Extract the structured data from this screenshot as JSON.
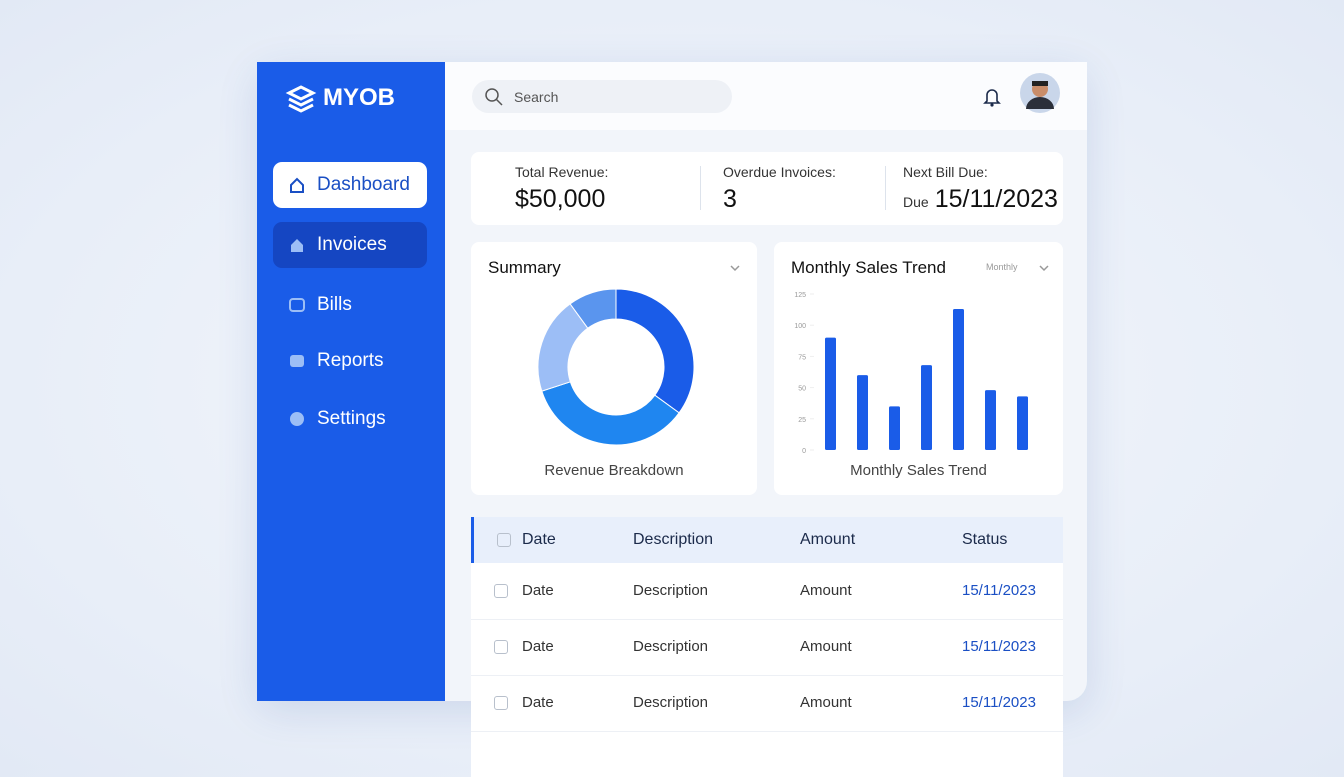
{
  "sidebar": {
    "logo": "MYOB",
    "nav": [
      "Dashboard",
      "Invoices",
      "Bills",
      "Reports",
      "Settings"
    ]
  },
  "header": {
    "search_placeholder": "Search"
  },
  "stats": [
    {
      "label": "Total Revenue:",
      "value": "$50,000"
    },
    {
      "label": "Overdue Invoices:",
      "value": "3"
    },
    {
      "label": "Next Bill Due:",
      "prefix": "Due",
      "value": "15/11/2023"
    }
  ],
  "summary": {
    "title": "Summary",
    "chart": {
      "type": "pie",
      "caption": "Revenue Breakdown",
      "values": [
        35,
        35,
        20,
        10
      ],
      "colors": [
        "#1a5ce8",
        "#1f86f0",
        "#9cbef6",
        "#5a95ee"
      ]
    }
  },
  "sales_trend": {
    "title": "Monthly Sales Trend",
    "filter": "Monthly",
    "chart": {
      "type": "bar",
      "caption": "Monthly Sales Trend",
      "values": [
        90,
        60,
        35,
        68,
        113,
        48,
        43
      ],
      "color": "#1a5ce8",
      "ylim": [
        0,
        125
      ],
      "yticks": [
        0,
        25,
        50,
        75,
        100,
        125
      ]
    }
  },
  "table": {
    "columns": [
      "Date",
      "Description",
      "Amount",
      "Status"
    ],
    "rows": [
      [
        "Date",
        "Description",
        "Amount",
        "15/11/2023"
      ],
      [
        "Date",
        "Description",
        "Amount",
        "15/11/2023"
      ],
      [
        "Date",
        "Description",
        "Amount",
        "15/11/2023"
      ]
    ]
  }
}
